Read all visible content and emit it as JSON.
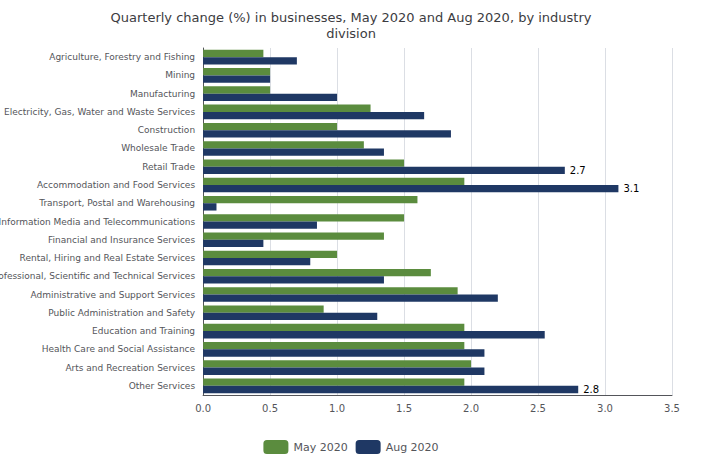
{
  "chart_data": {
    "type": "bar",
    "orientation": "horizontal",
    "title": "Quarterly change (%) in businesses, May 2020 and Aug 2020, by industry\ndivision",
    "categories": [
      "Agriculture, Forestry and Fishing",
      "Mining",
      "Manufacturing",
      "Electricity, Gas, Water and Waste Services",
      "Construction",
      "Wholesale Trade",
      "Retail Trade",
      "Accommodation and Food Services",
      "Transport, Postal and Warehousing",
      "Information Media and Telecommunications",
      "Financial and Insurance Services",
      "Rental, Hiring and Real Estate Services",
      "Professional, Scientific and Technical Services",
      "Administrative and Support Services",
      "Public Administration and Safety",
      "Education and Training",
      "Health Care and Social Assistance",
      "Arts and Recreation Services",
      "Other Services"
    ],
    "series": [
      {
        "name": "May 2020",
        "color": "#5B8C3E",
        "values": [
          0.45,
          0.5,
          0.5,
          1.25,
          1.0,
          1.2,
          1.5,
          1.95,
          1.6,
          1.5,
          1.35,
          1.0,
          1.7,
          1.9,
          0.9,
          1.95,
          1.95,
          2.0,
          1.95
        ]
      },
      {
        "name": "Aug 2020",
        "color": "#1F3864",
        "values": [
          0.7,
          0.5,
          1.0,
          1.65,
          1.85,
          1.35,
          2.7,
          3.1,
          0.1,
          0.85,
          0.45,
          0.8,
          1.35,
          2.2,
          1.3,
          2.55,
          2.1,
          2.1,
          2.8
        ]
      }
    ],
    "annotations": [
      {
        "category": "Retail Trade",
        "series": "Aug 2020",
        "value": 2.7,
        "text": "2.7"
      },
      {
        "category": "Accommodation and Food Services",
        "series": "Aug 2020",
        "value": 3.1,
        "text": "3.1"
      },
      {
        "category": "Other Services",
        "series": "Aug 2020",
        "value": 2.8,
        "text": "2.8"
      }
    ],
    "xlim": [
      0,
      3.5
    ],
    "xticks": [
      {
        "value": 0,
        "label": "0.0"
      },
      0.5,
      {
        "value": 1,
        "label": "1.0"
      },
      1.5,
      {
        "value": 2,
        "label": "2.0"
      },
      2.5,
      {
        "value": 3,
        "label": "3.0"
      },
      3.5
    ],
    "grid": true,
    "legend": "bottom"
  }
}
